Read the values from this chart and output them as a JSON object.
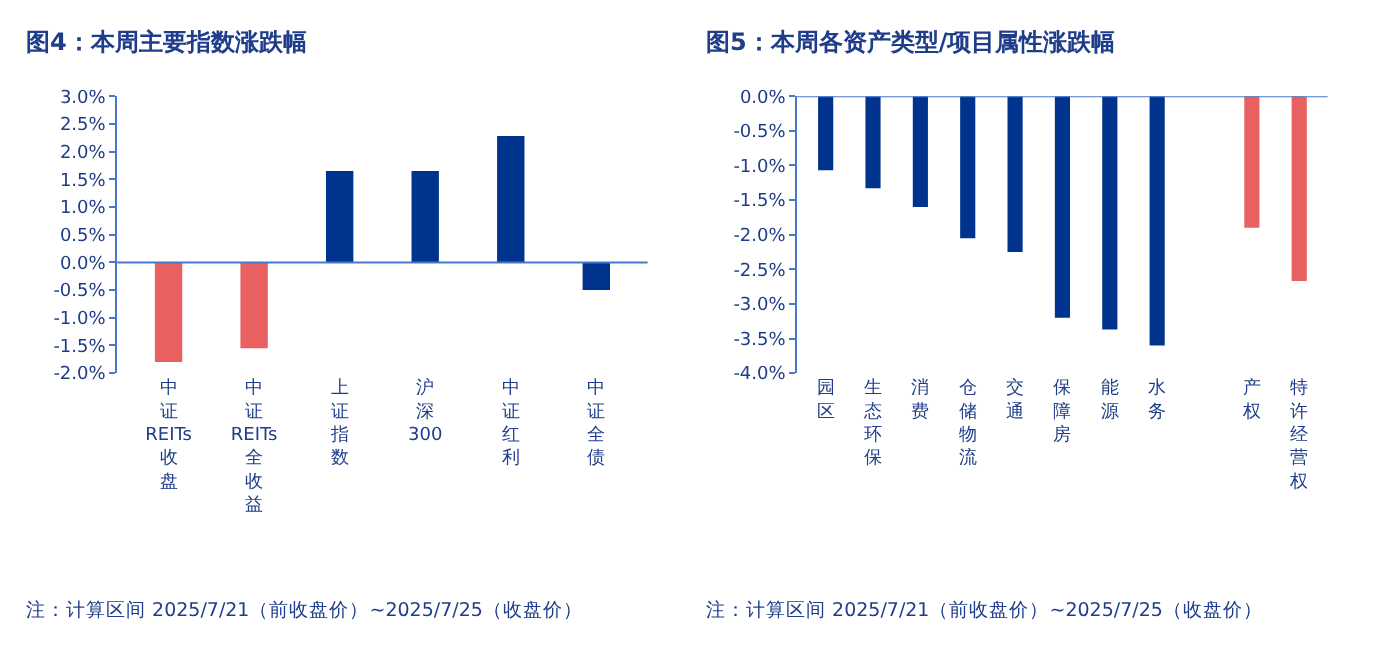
{
  "chart_data": [
    {
      "type": "bar",
      "title": "图4：本周主要指数涨跌幅",
      "categories": [
        "中证REITs收盘",
        "中证REITs全收益",
        "上证指数",
        "沪深300",
        "中证红利",
        "中证全债"
      ],
      "values": [
        -1.8,
        -1.55,
        1.65,
        1.65,
        2.28,
        -0.5
      ],
      "colors": [
        "#e8605f",
        "#e8605f",
        "#00338d",
        "#00338d",
        "#00338d",
        "#00338d"
      ],
      "ylim": [
        -2.0,
        3.0
      ],
      "yticks": [
        {
          "value": -2.0,
          "label": "-2.0%"
        },
        {
          "value": -1.5,
          "label": "-1.5%"
        },
        {
          "value": -1.0,
          "label": "-1.0%"
        },
        {
          "value": -0.5,
          "label": "-0.5%"
        },
        {
          "value": 0,
          "label": "0.0%"
        },
        {
          "value": 0.5,
          "label": "0.5%"
        },
        {
          "value": 1.0,
          "label": "1.0%"
        },
        {
          "value": 1.5,
          "label": "1.5%"
        },
        {
          "value": 2.0,
          "label": "2.0%"
        },
        {
          "value": 2.5,
          "label": "2.5%"
        },
        {
          "value": 3.0,
          "label": "3.0%"
        }
      ],
      "ref_lines": [
        {
          "axis": "y",
          "value": 0,
          "color": "#4a78c8"
        }
      ],
      "annotations": [
        "注：计算区间 2025/7/21（前收盘价）~2025/7/25（收盘价）"
      ]
    },
    {
      "type": "bar",
      "title": "图5：本周各资产类型/项目属性涨跌幅",
      "categories": [
        "园区",
        "生态环保",
        "消费",
        "仓储物流",
        "交通",
        "保障房",
        "能源",
        "水务",
        null,
        "产权",
        "特许经营权"
      ],
      "values": [
        -1.07,
        -1.33,
        -1.6,
        -2.05,
        -2.25,
        -3.2,
        -3.37,
        -3.6,
        null,
        -1.9,
        -2.67
      ],
      "colors": [
        "#00338d",
        "#00338d",
        "#00338d",
        "#00338d",
        "#00338d",
        "#00338d",
        "#00338d",
        "#00338d",
        "#00338d",
        "#e8605f",
        "#e8605f"
      ],
      "ylim": [
        -4.0,
        0.0
      ],
      "yticks": [
        {
          "value": -4.0,
          "label": "-4.0%"
        },
        {
          "value": -3.5,
          "label": "-3.5%"
        },
        {
          "value": -3.0,
          "label": "-3.0%"
        },
        {
          "value": -2.5,
          "label": "-2.5%"
        },
        {
          "value": -2.0,
          "label": "-2.0%"
        },
        {
          "value": -1.5,
          "label": "-1.5%"
        },
        {
          "value": -1.0,
          "label": "-1.0%"
        },
        {
          "value": -0.5,
          "label": "-0.5%"
        },
        {
          "value": 0,
          "label": "0.0%"
        }
      ],
      "ref_lines": [
        {
          "axis": "y",
          "value": 0,
          "color": "#4a78c8"
        }
      ],
      "annotations": [
        "注：计算区间 2025/7/21（前收盘价）~2025/7/25（收盘价）"
      ]
    }
  ]
}
